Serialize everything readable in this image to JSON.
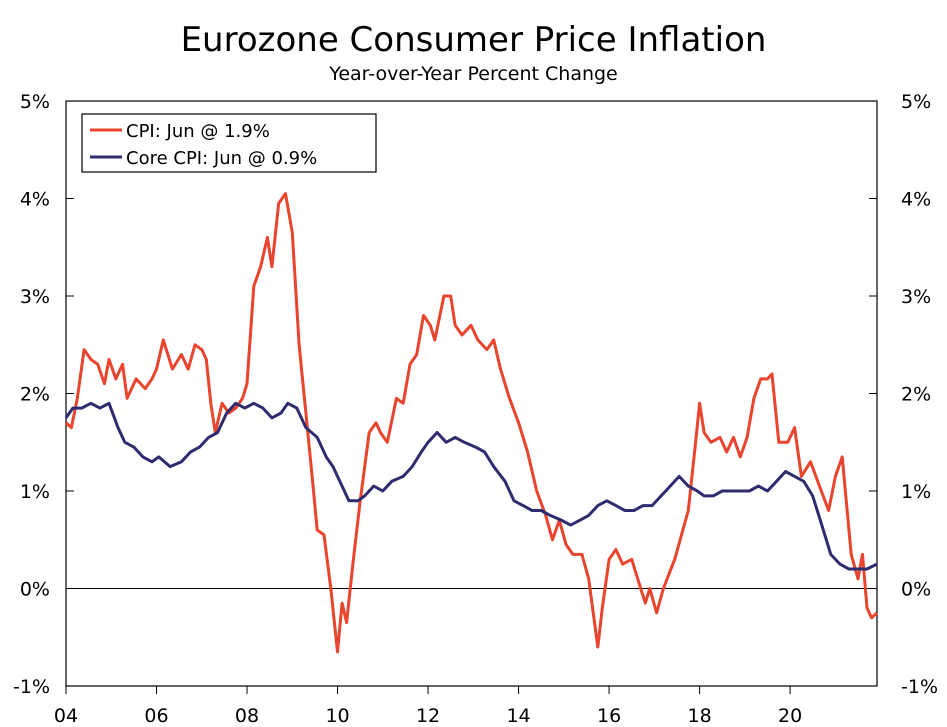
{
  "chart_data": {
    "type": "line",
    "title": "Eurozone Consumer Price Inflation",
    "subtitle": "Year-over-Year Percent Change",
    "xlabel": "",
    "ylabel": "",
    "xlim": [
      2004.0,
      2021.92
    ],
    "ylim": [
      -1,
      5
    ],
    "y_ticks": [
      -1,
      0,
      1,
      2,
      3,
      4,
      5
    ],
    "y_tick_labels": [
      "-1%",
      "0%",
      "1%",
      "2%",
      "3%",
      "4%",
      "5%"
    ],
    "x_ticks": [
      2004,
      2006,
      2008,
      2010,
      2012,
      2014,
      2016,
      2018,
      2020
    ],
    "x_tick_labels": [
      "04",
      "06",
      "08",
      "10",
      "12",
      "14",
      "16",
      "18",
      "20"
    ],
    "legend_position": "top-left",
    "zero_line": true,
    "series": [
      {
        "name": "CPI: Jun @ 1.9%",
        "color": "#e8442e",
        "points": [
          [
            2004.0,
            1.7
          ],
          [
            2004.12,
            1.65
          ],
          [
            2004.25,
            1.95
          ],
          [
            2004.4,
            2.45
          ],
          [
            2004.55,
            2.35
          ],
          [
            2004.7,
            2.3
          ],
          [
            2004.85,
            2.1
          ],
          [
            2004.95,
            2.35
          ],
          [
            2005.1,
            2.15
          ],
          [
            2005.25,
            2.3
          ],
          [
            2005.35,
            1.95
          ],
          [
            2005.55,
            2.15
          ],
          [
            2005.75,
            2.05
          ],
          [
            2005.9,
            2.15
          ],
          [
            2006.0,
            2.25
          ],
          [
            2006.15,
            2.55
          ],
          [
            2006.35,
            2.25
          ],
          [
            2006.55,
            2.4
          ],
          [
            2006.7,
            2.25
          ],
          [
            2006.85,
            2.5
          ],
          [
            2007.0,
            2.45
          ],
          [
            2007.1,
            2.35
          ],
          [
            2007.2,
            1.9
          ],
          [
            2007.3,
            1.6
          ],
          [
            2007.45,
            1.9
          ],
          [
            2007.6,
            1.8
          ],
          [
            2007.75,
            1.85
          ],
          [
            2007.9,
            1.95
          ],
          [
            2008.0,
            2.1
          ],
          [
            2008.15,
            3.1
          ],
          [
            2008.3,
            3.3
          ],
          [
            2008.45,
            3.6
          ],
          [
            2008.55,
            3.3
          ],
          [
            2008.7,
            3.95
          ],
          [
            2008.85,
            4.05
          ],
          [
            2009.0,
            3.65
          ],
          [
            2009.15,
            2.5
          ],
          [
            2009.3,
            1.8
          ],
          [
            2009.45,
            1.1
          ],
          [
            2009.55,
            0.6
          ],
          [
            2009.7,
            0.55
          ],
          [
            2009.85,
            0.0
          ],
          [
            2010.0,
            -0.65
          ],
          [
            2010.1,
            -0.15
          ],
          [
            2010.2,
            -0.35
          ],
          [
            2010.35,
            0.3
          ],
          [
            2010.5,
            0.9
          ],
          [
            2010.7,
            1.6
          ],
          [
            2010.85,
            1.7
          ],
          [
            2010.95,
            1.6
          ],
          [
            2011.1,
            1.5
          ],
          [
            2011.3,
            1.95
          ],
          [
            2011.45,
            1.9
          ],
          [
            2011.6,
            2.3
          ],
          [
            2011.75,
            2.4
          ],
          [
            2011.9,
            2.8
          ],
          [
            2012.05,
            2.7
          ],
          [
            2012.15,
            2.55
          ],
          [
            2012.35,
            3.0
          ],
          [
            2012.5,
            3.0
          ],
          [
            2012.6,
            2.7
          ],
          [
            2012.75,
            2.6
          ],
          [
            2012.95,
            2.7
          ],
          [
            2013.1,
            2.55
          ],
          [
            2013.3,
            2.45
          ],
          [
            2013.45,
            2.55
          ],
          [
            2013.6,
            2.25
          ],
          [
            2013.8,
            1.95
          ],
          [
            2014.0,
            1.7
          ],
          [
            2014.2,
            1.4
          ],
          [
            2014.4,
            1.0
          ],
          [
            2014.6,
            0.75
          ],
          [
            2014.75,
            0.5
          ],
          [
            2014.9,
            0.7
          ],
          [
            2015.05,
            0.45
          ],
          [
            2015.2,
            0.35
          ],
          [
            2015.4,
            0.35
          ],
          [
            2015.55,
            0.1
          ],
          [
            2015.75,
            -0.6
          ],
          [
            2015.85,
            -0.2
          ],
          [
            2016.0,
            0.3
          ],
          [
            2016.15,
            0.4
          ],
          [
            2016.3,
            0.25
          ],
          [
            2016.5,
            0.3
          ],
          [
            2016.6,
            0.15
          ],
          [
            2016.8,
            -0.15
          ],
          [
            2016.9,
            0.0
          ],
          [
            2017.05,
            -0.25
          ],
          [
            2017.2,
            0.0
          ],
          [
            2017.45,
            0.3
          ],
          [
            2017.6,
            0.55
          ],
          [
            2017.75,
            0.8
          ],
          [
            2017.9,
            1.45
          ],
          [
            2018.0,
            1.9
          ],
          [
            2018.1,
            1.6
          ],
          [
            2018.25,
            1.5
          ],
          [
            2018.45,
            1.55
          ],
          [
            2018.6,
            1.4
          ],
          [
            2018.75,
            1.55
          ],
          [
            2018.9,
            1.35
          ],
          [
            2019.05,
            1.55
          ],
          [
            2019.2,
            1.95
          ],
          [
            2019.35,
            2.15
          ],
          [
            2019.5,
            2.15
          ],
          [
            2019.6,
            2.2
          ],
          [
            2019.75,
            1.5
          ],
          [
            2019.95,
            1.5
          ],
          [
            2020.1,
            1.65
          ],
          [
            2020.25,
            1.15
          ],
          [
            2020.45,
            1.3
          ],
          [
            2020.65,
            1.05
          ],
          [
            2020.85,
            0.8
          ],
          [
            2021.0,
            1.15
          ],
          [
            2021.15,
            1.35
          ],
          [
            2021.35,
            0.35
          ],
          [
            2021.5,
            0.1
          ],
          [
            2021.6,
            0.35
          ],
          [
            2021.7,
            -0.2
          ],
          [
            2021.8,
            -0.3
          ],
          [
            2021.92,
            -0.25
          ]
        ]
      },
      {
        "name": "Core CPI: Jun @ 0.9%",
        "color": "#2e2c6e",
        "points": [
          [
            2004.0,
            1.75
          ],
          [
            2004.15,
            1.85
          ],
          [
            2004.35,
            1.85
          ],
          [
            2004.55,
            1.9
          ],
          [
            2004.75,
            1.85
          ],
          [
            2004.95,
            1.9
          ],
          [
            2005.15,
            1.65
          ],
          [
            2005.3,
            1.5
          ],
          [
            2005.5,
            1.45
          ],
          [
            2005.7,
            1.35
          ],
          [
            2005.9,
            1.3
          ],
          [
            2006.05,
            1.35
          ],
          [
            2006.3,
            1.25
          ],
          [
            2006.55,
            1.3
          ],
          [
            2006.75,
            1.4
          ],
          [
            2006.95,
            1.45
          ],
          [
            2007.15,
            1.55
          ],
          [
            2007.35,
            1.6
          ],
          [
            2007.55,
            1.8
          ],
          [
            2007.75,
            1.9
          ],
          [
            2007.95,
            1.85
          ],
          [
            2008.15,
            1.9
          ],
          [
            2008.35,
            1.85
          ],
          [
            2008.55,
            1.75
          ],
          [
            2008.75,
            1.8
          ],
          [
            2008.9,
            1.9
          ],
          [
            2009.1,
            1.85
          ],
          [
            2009.3,
            1.65
          ],
          [
            2009.55,
            1.55
          ],
          [
            2009.75,
            1.35
          ],
          [
            2009.9,
            1.25
          ],
          [
            2010.1,
            1.05
          ],
          [
            2010.25,
            0.9
          ],
          [
            2010.45,
            0.9
          ],
          [
            2010.6,
            0.95
          ],
          [
            2010.8,
            1.05
          ],
          [
            2011.0,
            1.0
          ],
          [
            2011.2,
            1.1
          ],
          [
            2011.45,
            1.15
          ],
          [
            2011.65,
            1.25
          ],
          [
            2011.85,
            1.4
          ],
          [
            2012.0,
            1.5
          ],
          [
            2012.2,
            1.6
          ],
          [
            2012.4,
            1.5
          ],
          [
            2012.6,
            1.55
          ],
          [
            2012.8,
            1.5
          ],
          [
            2013.05,
            1.45
          ],
          [
            2013.25,
            1.4
          ],
          [
            2013.45,
            1.25
          ],
          [
            2013.7,
            1.1
          ],
          [
            2013.9,
            0.9
          ],
          [
            2014.1,
            0.85
          ],
          [
            2014.3,
            0.8
          ],
          [
            2014.5,
            0.8
          ],
          [
            2014.7,
            0.75
          ],
          [
            2014.95,
            0.7
          ],
          [
            2015.15,
            0.65
          ],
          [
            2015.35,
            0.7
          ],
          [
            2015.55,
            0.75
          ],
          [
            2015.75,
            0.85
          ],
          [
            2015.95,
            0.9
          ],
          [
            2016.15,
            0.85
          ],
          [
            2016.35,
            0.8
          ],
          [
            2016.55,
            0.8
          ],
          [
            2016.75,
            0.85
          ],
          [
            2016.95,
            0.85
          ],
          [
            2017.15,
            0.95
          ],
          [
            2017.35,
            1.05
          ],
          [
            2017.55,
            1.15
          ],
          [
            2017.75,
            1.05
          ],
          [
            2017.95,
            1.0
          ],
          [
            2018.1,
            0.95
          ],
          [
            2018.3,
            0.95
          ],
          [
            2018.5,
            1.0
          ],
          [
            2018.7,
            1.0
          ],
          [
            2018.9,
            1.0
          ],
          [
            2019.1,
            1.0
          ],
          [
            2019.3,
            1.05
          ],
          [
            2019.5,
            1.0
          ],
          [
            2019.7,
            1.1
          ],
          [
            2019.9,
            1.2
          ],
          [
            2020.1,
            1.15
          ],
          [
            2020.3,
            1.1
          ],
          [
            2020.5,
            0.95
          ],
          [
            2020.7,
            0.65
          ],
          [
            2020.9,
            0.35
          ],
          [
            2021.1,
            0.25
          ],
          [
            2021.3,
            0.2
          ],
          [
            2021.5,
            0.2
          ],
          [
            2021.7,
            0.2
          ],
          [
            2021.92,
            0.25
          ]
        ]
      }
    ]
  }
}
